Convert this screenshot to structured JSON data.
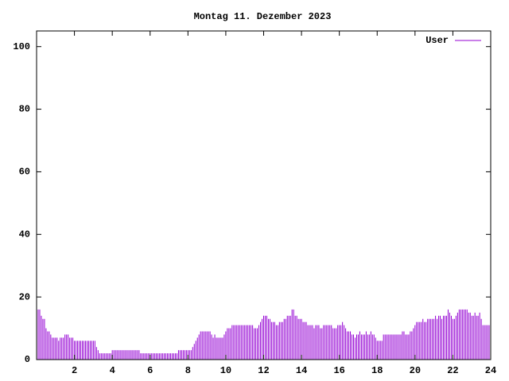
{
  "chart_data": {
    "type": "impulses",
    "title": "Montag 11. Dezember 2023",
    "xlim": [
      0,
      24
    ],
    "xticks": [
      2,
      4,
      6,
      8,
      10,
      12,
      14,
      16,
      18,
      20,
      22,
      24
    ],
    "ylim": [
      0,
      105
    ],
    "yticks": [
      0,
      20,
      40,
      60,
      80,
      100
    ],
    "legend": "top-right",
    "series": [
      {
        "name": "User",
        "color": "#9400d3",
        "x": [
          0,
          0.083,
          0.167,
          0.25,
          0.333,
          0.417,
          0.5,
          0.583,
          0.667,
          0.75,
          0.833,
          0.917,
          1,
          1.083,
          1.167,
          1.25,
          1.333,
          1.417,
          1.5,
          1.583,
          1.667,
          1.75,
          1.833,
          1.917,
          2,
          2.083,
          2.167,
          2.25,
          2.333,
          2.417,
          2.5,
          2.583,
          2.667,
          2.75,
          2.833,
          2.917,
          3,
          3.083,
          3.167,
          3.25,
          3.333,
          3.417,
          3.5,
          3.583,
          3.667,
          3.75,
          3.833,
          3.917,
          4,
          4.083,
          4.167,
          4.25,
          4.333,
          4.417,
          4.5,
          4.583,
          4.667,
          4.75,
          4.833,
          4.917,
          5,
          5.083,
          5.167,
          5.25,
          5.333,
          5.417,
          5.5,
          5.583,
          5.667,
          5.75,
          5.833,
          5.917,
          6,
          6.083,
          6.167,
          6.25,
          6.333,
          6.417,
          6.5,
          6.583,
          6.667,
          6.75,
          6.833,
          6.917,
          7,
          7.083,
          7.167,
          7.25,
          7.333,
          7.417,
          7.5,
          7.583,
          7.667,
          7.75,
          7.833,
          7.917,
          8,
          8.083,
          8.167,
          8.25,
          8.333,
          8.417,
          8.5,
          8.583,
          8.667,
          8.75,
          8.833,
          8.917,
          9,
          9.083,
          9.167,
          9.25,
          9.333,
          9.417,
          9.5,
          9.583,
          9.667,
          9.75,
          9.833,
          9.917,
          10,
          10.083,
          10.167,
          10.25,
          10.333,
          10.417,
          10.5,
          10.583,
          10.667,
          10.75,
          10.833,
          10.917,
          11,
          11.083,
          11.167,
          11.25,
          11.333,
          11.417,
          11.5,
          11.583,
          11.667,
          11.75,
          11.833,
          11.917,
          12,
          12.083,
          12.167,
          12.25,
          12.333,
          12.417,
          12.5,
          12.583,
          12.667,
          12.75,
          12.833,
          12.917,
          13,
          13.083,
          13.167,
          13.25,
          13.333,
          13.417,
          13.5,
          13.583,
          13.667,
          13.75,
          13.833,
          13.917,
          14,
          14.083,
          14.167,
          14.25,
          14.333,
          14.417,
          14.5,
          14.583,
          14.667,
          14.75,
          14.833,
          14.917,
          15,
          15.083,
          15.167,
          15.25,
          15.333,
          15.417,
          15.5,
          15.583,
          15.667,
          15.75,
          15.833,
          15.917,
          16,
          16.083,
          16.167,
          16.25,
          16.333,
          16.417,
          16.5,
          16.583,
          16.667,
          16.75,
          16.833,
          16.917,
          17,
          17.083,
          17.167,
          17.25,
          17.333,
          17.417,
          17.5,
          17.583,
          17.667,
          17.75,
          17.833,
          17.917,
          18,
          18.083,
          18.167,
          18.25,
          18.333,
          18.417,
          18.5,
          18.583,
          18.667,
          18.75,
          18.833,
          18.917,
          19,
          19.083,
          19.167,
          19.25,
          19.333,
          19.417,
          19.5,
          19.583,
          19.667,
          19.75,
          19.833,
          19.917,
          20,
          20.083,
          20.167,
          20.25,
          20.333,
          20.417,
          20.5,
          20.583,
          20.667,
          20.75,
          20.833,
          20.917,
          21,
          21.083,
          21.167,
          21.25,
          21.333,
          21.417,
          21.5,
          21.583,
          21.667,
          21.75,
          21.833,
          21.917,
          22,
          22.083,
          22.167,
          22.25,
          22.333,
          22.417,
          22.5,
          22.583,
          22.667,
          22.75,
          22.833,
          22.917,
          23,
          23.083,
          23.167,
          23.25,
          23.333,
          23.417,
          23.5,
          23.583,
          23.667,
          23.75,
          23.833,
          23.917
        ],
        "values": [
          16,
          16,
          16,
          14,
          13,
          13,
          10,
          9,
          9,
          8,
          7,
          7,
          7,
          7,
          6,
          7,
          7,
          7,
          8,
          8,
          8,
          7,
          7,
          7,
          6,
          6,
          6,
          6,
          6,
          6,
          6,
          6,
          6,
          6,
          6,
          6,
          6,
          6,
          4,
          3,
          2,
          2,
          2,
          2,
          2,
          2,
          2,
          2,
          3,
          3,
          3,
          3,
          3,
          3,
          3,
          3,
          3,
          3,
          3,
          3,
          3,
          3,
          3,
          3,
          3,
          3,
          2,
          2,
          2,
          2,
          2,
          2,
          2,
          2,
          2,
          2,
          2,
          2,
          2,
          2,
          2,
          2,
          2,
          2,
          2,
          2,
          2,
          2,
          2,
          2,
          3,
          3,
          3,
          3,
          3,
          3,
          3,
          3,
          3,
          4,
          5,
          6,
          7,
          8,
          9,
          9,
          9,
          9,
          9,
          9,
          9,
          8,
          7,
          8,
          7,
          7,
          7,
          7,
          7,
          8,
          9,
          10,
          10,
          10,
          11,
          11,
          11,
          11,
          11,
          11,
          11,
          11,
          11,
          11,
          11,
          11,
          11,
          11,
          10,
          10,
          10,
          11,
          12,
          13,
          14,
          14,
          14,
          13,
          13,
          12,
          12,
          12,
          11,
          11,
          12,
          12,
          12,
          13,
          13,
          14,
          14,
          14,
          16,
          16,
          14,
          14,
          13,
          13,
          13,
          12,
          12,
          12,
          11,
          11,
          11,
          11,
          10,
          11,
          11,
          11,
          10,
          10,
          11,
          11,
          11,
          11,
          11,
          11,
          10,
          10,
          10,
          11,
          11,
          11,
          12,
          11,
          10,
          9,
          9,
          9,
          8,
          8,
          7,
          8,
          8,
          9,
          8,
          8,
          8,
          9,
          8,
          8,
          9,
          8,
          8,
          7,
          6,
          6,
          6,
          6,
          8,
          8,
          8,
          8,
          8,
          8,
          8,
          8,
          8,
          8,
          8,
          8,
          9,
          9,
          8,
          8,
          8,
          9,
          9,
          10,
          11,
          12,
          12,
          12,
          12,
          13,
          12,
          12,
          13,
          13,
          13,
          13,
          13,
          14,
          13,
          14,
          14,
          13,
          14,
          14,
          14,
          16,
          15,
          14,
          13,
          13,
          14,
          15,
          16,
          16,
          16,
          16,
          16,
          16,
          15,
          15,
          14,
          14,
          15,
          14,
          14,
          15,
          13,
          11,
          11,
          11,
          11,
          11
        ]
      }
    ]
  }
}
